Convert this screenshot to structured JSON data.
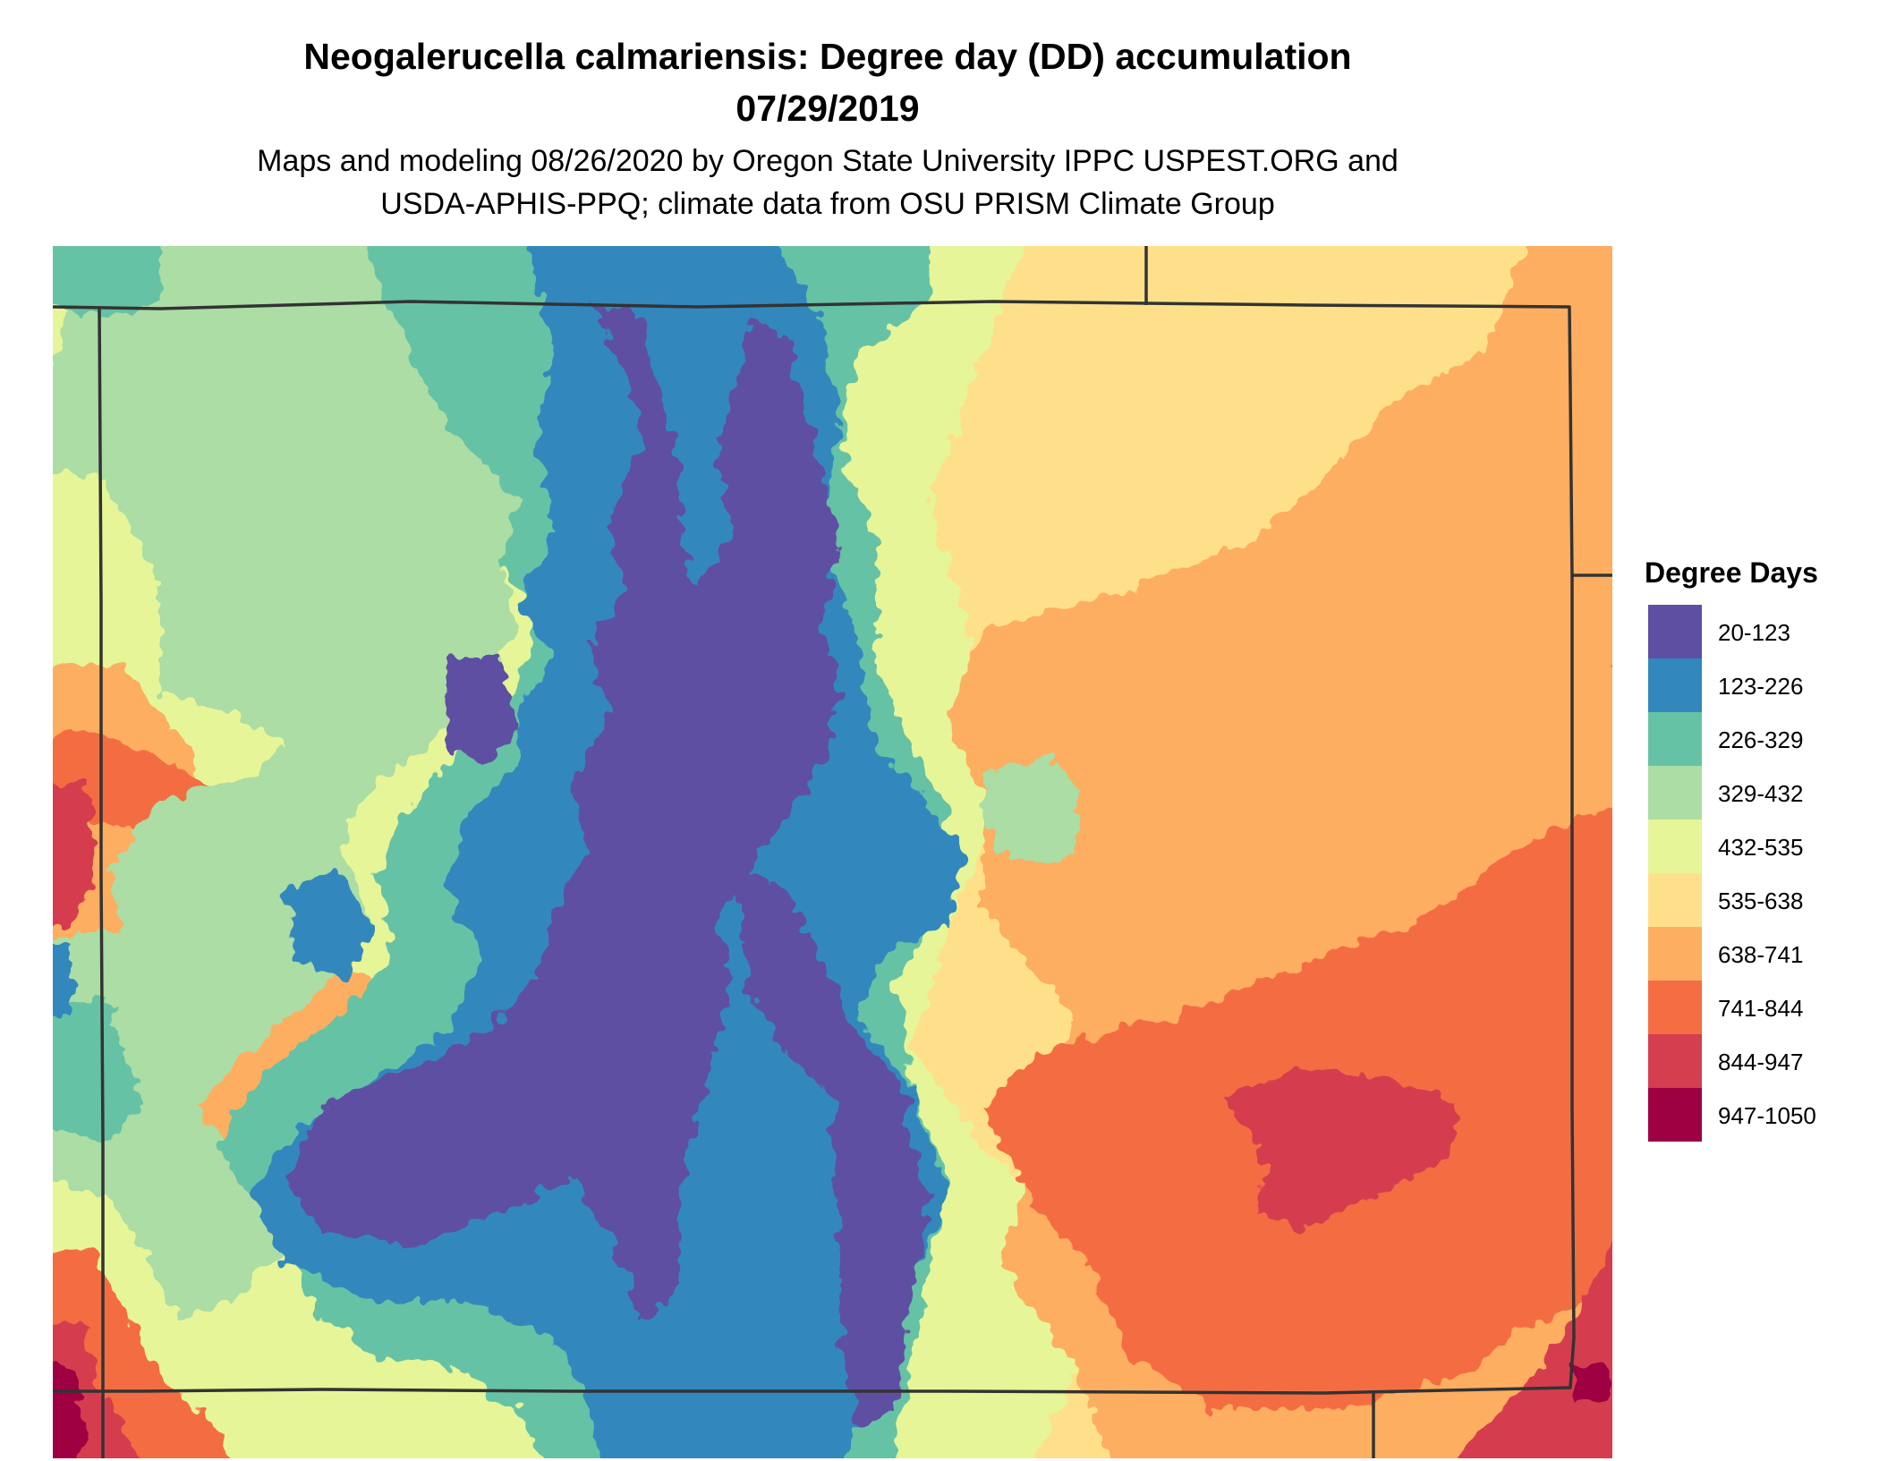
{
  "title": {
    "line1": "Neogalerucella calmariensis: Degree day (DD) accumulation",
    "line2": "07/29/2019"
  },
  "subtitle": {
    "line1": "Maps and modeling 08/26/2020 by Oregon State University IPPC USPEST.ORG and",
    "line2": "USDA-APHIS-PPQ; climate data from OSU PRISM Climate Group"
  },
  "legend": {
    "title": "Degree Days",
    "items": [
      {
        "label": "20-123",
        "color": "#5E4FA2"
      },
      {
        "label": "123-226",
        "color": "#3288BD"
      },
      {
        "label": "226-329",
        "color": "#66C2A5"
      },
      {
        "label": "329-432",
        "color": "#ABDDA4"
      },
      {
        "label": "432-535",
        "color": "#E6F598"
      },
      {
        "label": "535-638",
        "color": "#FEE08B"
      },
      {
        "label": "638-741",
        "color": "#FDAE61"
      },
      {
        "label": "741-844",
        "color": "#F46D43"
      },
      {
        "label": "844-947",
        "color": "#D53E4F"
      },
      {
        "label": "947-1050",
        "color": "#9E0142"
      }
    ]
  }
}
